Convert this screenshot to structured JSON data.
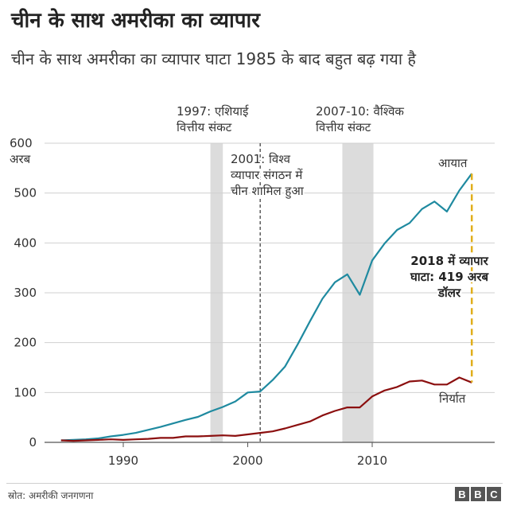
{
  "header": {
    "title": "चीन के साथ अमरीका का व्यापार",
    "subtitle": "चीन के साथ अमरीका का व्यापार घाटा 1985 के बाद बहुत बढ़ गया है"
  },
  "chart_data": {
    "type": "line",
    "ylabel_lines": [
      "600",
      "अरब"
    ],
    "yticks": [
      0,
      100,
      200,
      300,
      400,
      500,
      600
    ],
    "xticks": [
      1990,
      2000,
      2010
    ],
    "xlim": [
      1985,
      2018
    ],
    "ylim": [
      0,
      600
    ],
    "grid": "horizontal",
    "series": [
      {
        "name": "आयात",
        "color": "#1f8aa0",
        "x": [
          1985,
          1986,
          1987,
          1988,
          1989,
          1990,
          1991,
          1992,
          1993,
          1994,
          1995,
          1996,
          1997,
          1998,
          1999,
          2000,
          2001,
          2002,
          2003,
          2004,
          2005,
          2006,
          2007,
          2008,
          2009,
          2010,
          2011,
          2012,
          2013,
          2014,
          2015,
          2016,
          2017,
          2018
        ],
        "values": [
          4,
          5,
          6,
          8,
          12,
          15,
          19,
          25,
          31,
          38,
          45,
          51,
          62,
          71,
          82,
          100,
          102,
          125,
          152,
          196,
          243,
          288,
          321,
          337,
          296,
          365,
          399,
          426,
          440,
          468,
          483,
          463,
          505,
          539
        ]
      },
      {
        "name": "निर्यात",
        "color": "#8b0f0f",
        "x": [
          1985,
          1986,
          1987,
          1988,
          1989,
          1990,
          1991,
          1992,
          1993,
          1994,
          1995,
          1996,
          1997,
          1998,
          1999,
          2000,
          2001,
          2002,
          2003,
          2004,
          2005,
          2006,
          2007,
          2008,
          2009,
          2010,
          2011,
          2012,
          2013,
          2014,
          2015,
          2016,
          2017,
          2018
        ],
        "values": [
          4,
          3,
          4,
          5,
          6,
          5,
          6,
          7,
          9,
          9,
          12,
          12,
          13,
          14,
          13,
          16,
          19,
          22,
          28,
          35,
          42,
          54,
          63,
          70,
          70,
          92,
          104,
          111,
          122,
          124,
          116,
          116,
          130,
          120
        ]
      }
    ],
    "bands": [
      {
        "from": 1997,
        "to": 1998,
        "label_lines": [
          "1997: एशियाई",
          "वित्तीय संकट"
        ]
      },
      {
        "from": 2007.6,
        "to": 2010.1,
        "label_lines": [
          "2007-10: वैश्विक",
          "वित्तीय संकट"
        ]
      }
    ],
    "vline": {
      "x": 2001,
      "label_lines": [
        "2001: विश्व",
        "व्यापार संगठन में",
        "चीन शामिल हुआ"
      ]
    },
    "deficit": {
      "x": 2018,
      "from": 120,
      "to": 539,
      "color": "#e0ae1b",
      "label_lines": [
        "2018 में व्यापार",
        "घाटा: 419 अरब",
        "डॉलर"
      ]
    }
  },
  "footer": {
    "source": "स्रोत: अमरीकी जनगणना",
    "logo": [
      "B",
      "B",
      "C"
    ]
  }
}
